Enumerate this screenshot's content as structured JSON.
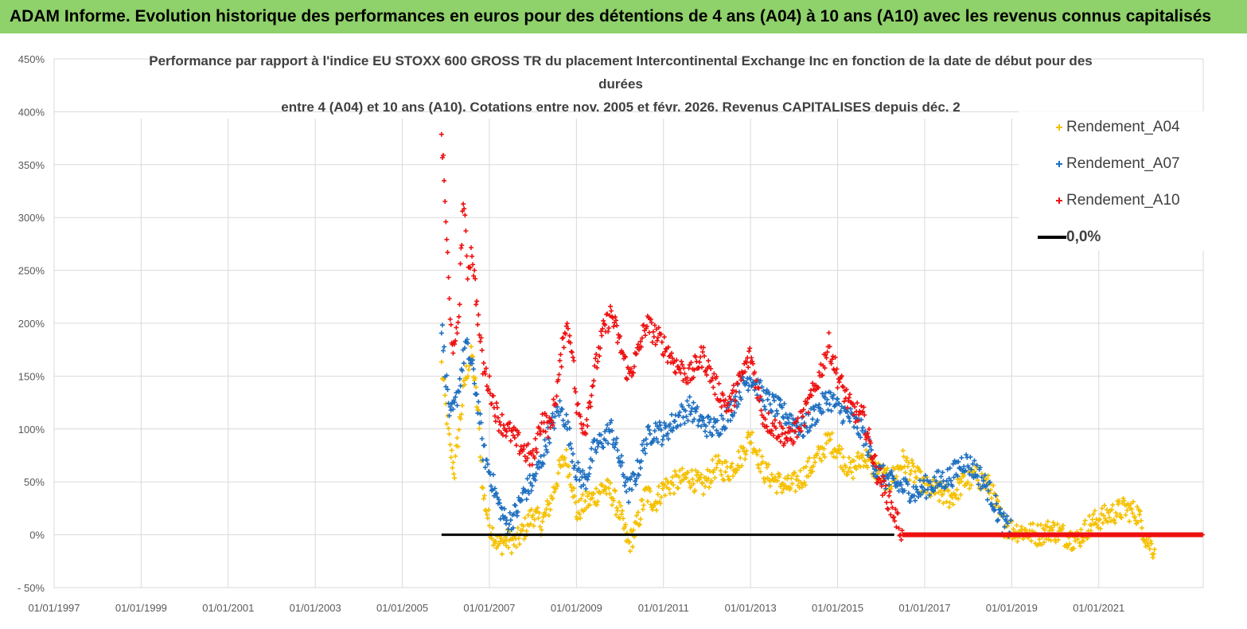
{
  "header": {
    "banner_text": "ADAM Informe. Evolution historique des performances en euros pour des détentions de 4 ans (A04) à 10 ans (A10) avec les revenus connus capitalisés"
  },
  "colors": {
    "banner_bg": "#8fd16a",
    "a04": "#f5c000",
    "a07": "#1e6fc0",
    "a10": "#ee1111",
    "zero": "#000000"
  },
  "chart_data": {
    "type": "scatter",
    "title_lines": [
      "Performance par rapport à l'indice EU STOXX 600 GROSS TR  du placement Intercontinental Exchange Inc en fonction de la date de début pour des",
      "durées",
      "entre 4 (A04) et 10 ans (A10). Cotations entre nov. 2005 et févr. 2026. Revenus CAPITALISES depuis déc. 2"
    ],
    "y_ticks": [
      "450%",
      "400%",
      "350%",
      "300%",
      "250%",
      "200%",
      "150%",
      "100%",
      "50%",
      "0%",
      "- 50%"
    ],
    "ylim": [
      -50,
      450
    ],
    "x_ticks": [
      "01/01/1997",
      "01/01/1999",
      "01/01/2001",
      "01/01/2003",
      "01/01/2005",
      "01/01/2007",
      "01/01/2009",
      "01/01/2011",
      "01/01/2013",
      "01/01/2015",
      "01/01/2017",
      "01/01/2019",
      "01/01/2021"
    ],
    "xlim": [
      1997.0,
      2023.4
    ],
    "series": [
      {
        "name": "Rendement_A04",
        "marker": "+",
        "x": [
          2005.9,
          2006.0,
          2006.1,
          2006.2,
          2006.3,
          2006.45,
          2006.6,
          2006.75,
          2006.85,
          2007.0,
          2007.2,
          2007.4,
          2007.6,
          2007.8,
          2008.0,
          2008.2,
          2008.4,
          2008.6,
          2008.75,
          2008.9,
          2009.0,
          2009.2,
          2009.4,
          2009.6,
          2009.8,
          2010.0,
          2010.2,
          2010.4,
          2010.6,
          2010.8,
          2011.0,
          2011.3,
          2011.6,
          2011.9,
          2012.2,
          2012.5,
          2012.8,
          2013.0,
          2013.3,
          2013.6,
          2013.9,
          2014.2,
          2014.5,
          2014.8,
          2015.0,
          2015.3,
          2015.6,
          2015.9,
          2016.2,
          2016.5,
          2016.8,
          2017.0,
          2017.3,
          2017.6,
          2017.9,
          2018.2,
          2018.5,
          2018.8,
          2019.0,
          2019.3,
          2019.6,
          2019.9,
          2020.2,
          2020.5,
          2020.8,
          2021.0,
          2021.3,
          2021.6,
          2021.9,
          2022.1,
          2022.3
        ],
        "y": [
          160,
          120,
          80,
          60,
          100,
          150,
          170,
          110,
          40,
          10,
          -10,
          -5,
          -8,
          5,
          20,
          10,
          30,
          60,
          75,
          50,
          20,
          30,
          35,
          45,
          40,
          20,
          -10,
          10,
          40,
          30,
          45,
          50,
          55,
          45,
          65,
          60,
          75,
          95,
          60,
          50,
          45,
          55,
          70,
          90,
          80,
          60,
          75,
          60,
          50,
          70,
          55,
          45,
          40,
          35,
          50,
          55,
          45,
          10,
          5,
          3,
          0,
          5,
          0,
          -5,
          10,
          15,
          20,
          25,
          20,
          -5,
          -15
        ]
      },
      {
        "name": "Rendement_A07",
        "marker": "+",
        "x": [
          2005.9,
          2006.0,
          2006.1,
          2006.2,
          2006.3,
          2006.45,
          2006.6,
          2006.75,
          2006.85,
          2007.0,
          2007.2,
          2007.4,
          2007.6,
          2007.8,
          2008.0,
          2008.2,
          2008.4,
          2008.6,
          2008.75,
          2008.9,
          2009.0,
          2009.2,
          2009.4,
          2009.6,
          2009.8,
          2010.0,
          2010.2,
          2010.4,
          2010.6,
          2010.8,
          2011.0,
          2011.3,
          2011.6,
          2011.9,
          2012.2,
          2012.5,
          2012.8,
          2013.0,
          2013.3,
          2013.6,
          2013.9,
          2014.2,
          2014.5,
          2014.8,
          2015.0,
          2015.3,
          2015.6,
          2015.9,
          2016.2,
          2016.5,
          2016.8,
          2017.0,
          2017.3,
          2017.6,
          2017.9,
          2018.2,
          2018.5,
          2018.8,
          2019.0
        ],
        "y": [
          200,
          150,
          110,
          120,
          140,
          180,
          160,
          120,
          80,
          60,
          30,
          10,
          20,
          40,
          50,
          70,
          100,
          120,
          110,
          80,
          60,
          50,
          80,
          90,
          100,
          70,
          40,
          60,
          90,
          100,
          95,
          110,
          120,
          105,
          100,
          115,
          140,
          150,
          130,
          120,
          110,
          100,
          115,
          130,
          120,
          110,
          95,
          60,
          50,
          45,
          40,
          45,
          50,
          55,
          70,
          60,
          40,
          10,
          5
        ]
      },
      {
        "name": "Rendement_A10",
        "marker": "+",
        "x": [
          2005.9,
          2006.0,
          2006.1,
          2006.2,
          2006.3,
          2006.4,
          2006.5,
          2006.6,
          2006.75,
          2006.85,
          2007.0,
          2007.2,
          2007.4,
          2007.6,
          2007.8,
          2008.0,
          2008.2,
          2008.4,
          2008.6,
          2008.75,
          2008.9,
          2009.0,
          2009.2,
          2009.4,
          2009.6,
          2009.8,
          2010.0,
          2010.2,
          2010.4,
          2010.6,
          2010.8,
          2011.0,
          2011.3,
          2011.6,
          2011.9,
          2012.2,
          2012.5,
          2012.8,
          2013.0,
          2013.3,
          2013.6,
          2013.9,
          2014.2,
          2014.5,
          2014.8,
          2015.0,
          2015.3,
          2015.6,
          2015.9,
          2016.2,
          2016.5,
          2017.0,
          2017.5,
          2018.0,
          2018.5,
          2019.0,
          2019.5,
          2020.0,
          2020.5,
          2021.0,
          2021.5,
          2022.0,
          2022.5,
          2023.0,
          2023.4
        ],
        "y": [
          380,
          300,
          200,
          170,
          210,
          320,
          250,
          270,
          200,
          160,
          140,
          110,
          100,
          90,
          80,
          70,
          110,
          100,
          150,
          200,
          180,
          120,
          100,
          150,
          190,
          210,
          180,
          150,
          170,
          200,
          190,
          180,
          160,
          150,
          170,
          140,
          120,
          150,
          170,
          110,
          100,
          90,
          110,
          140,
          180,
          150,
          120,
          110,
          60,
          30,
          0,
          0,
          0,
          0,
          0,
          0,
          0,
          0,
          0,
          0,
          0,
          0,
          0,
          0,
          0
        ]
      }
    ],
    "zero_line": {
      "name": "0,0%",
      "x": [
        2005.9,
        2016.3
      ],
      "y": [
        0,
        0
      ]
    },
    "legend": [
      "Rendement_A04",
      "Rendement_A07",
      "Rendement_A10",
      "0,0%"
    ]
  }
}
